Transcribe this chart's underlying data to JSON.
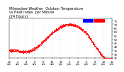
{
  "title": "Milwaukee Weather  Outdoor Temperature\nvs Heat Index  per Minute\n(24 Hours)",
  "bg_color": "#ffffff",
  "plot_bg": "#ffffff",
  "dot_color": "#ff0000",
  "ylim": [
    25,
    78
  ],
  "yticks": [
    25,
    30,
    35,
    40,
    45,
    50,
    55,
    60,
    65,
    70,
    75
  ],
  "num_points": 1440,
  "grid_color": "#cccccc",
  "title_fontsize": 3.5,
  "tick_fontsize": 2.8,
  "legend_blue": "#0000ff",
  "legend_red": "#ff0000",
  "dot_size": 0.3,
  "vline_hour": 5.5
}
